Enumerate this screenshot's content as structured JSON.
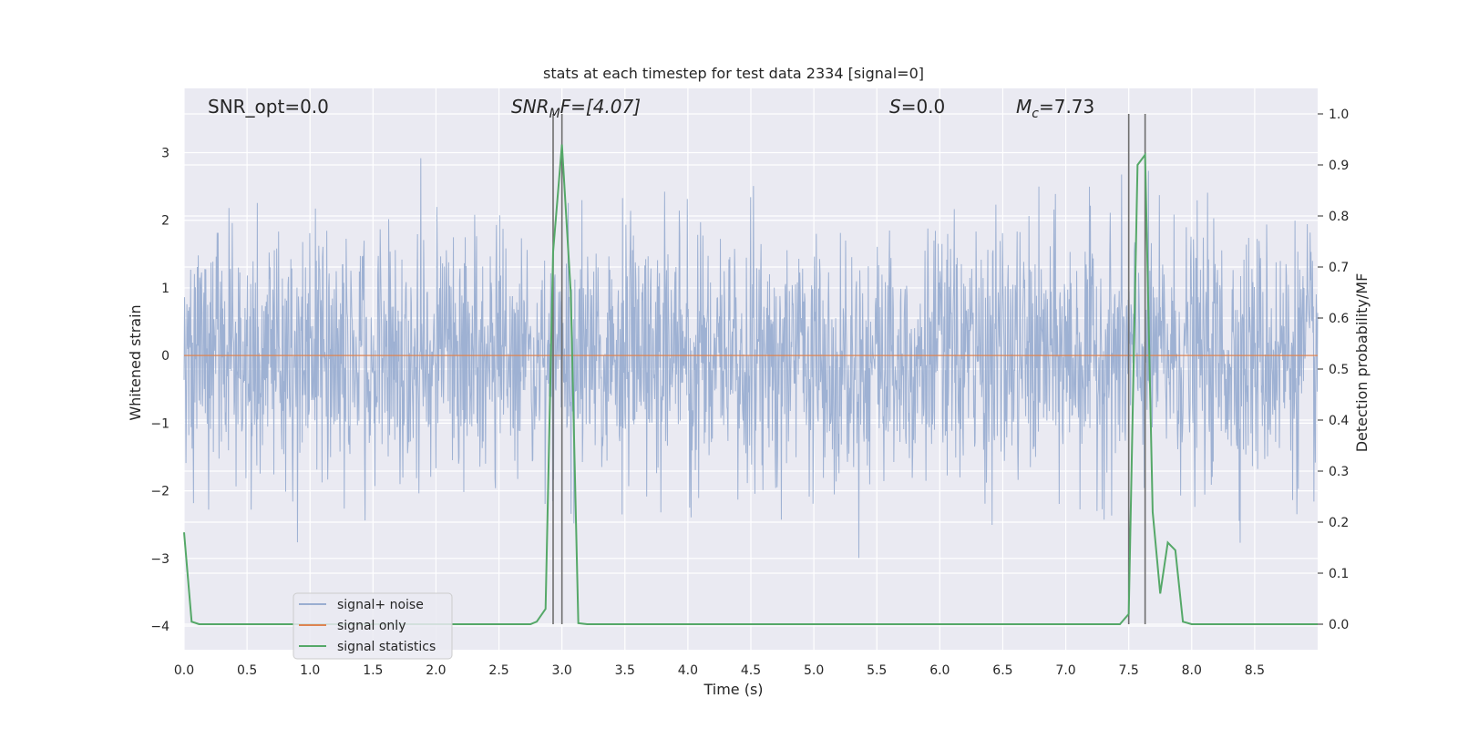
{
  "chart_data": {
    "type": "line",
    "title": "stats at each timestep for test data 2334 [signal=0]",
    "xlabel": "Time (s)",
    "ylabel_left": "Whitened strain",
    "ylabel_right": "Detection probability/MF",
    "xlim": [
      0,
      9.0
    ],
    "ylim_left": [
      -4.35,
      3.95
    ],
    "ylim_right": [
      -0.05,
      1.05
    ],
    "x_ticks": [
      "0.0",
      "0.5",
      "1.0",
      "1.5",
      "2.0",
      "2.5",
      "3.0",
      "3.5",
      "4.0",
      "4.5",
      "5.0",
      "5.5",
      "6.0",
      "6.5",
      "7.0",
      "7.5",
      "8.0",
      "8.5"
    ],
    "x_tick_values": [
      0,
      0.5,
      1,
      1.5,
      2,
      2.5,
      3,
      3.5,
      4,
      4.5,
      5,
      5.5,
      6,
      6.5,
      7,
      7.5,
      8,
      8.5
    ],
    "y_left_ticks": [
      "3",
      "2",
      "1",
      "0",
      "−1",
      "−2",
      "−3",
      "−4"
    ],
    "y_left_tick_values": [
      3,
      2,
      1,
      0,
      -1,
      -2,
      -3,
      -4
    ],
    "y_right_ticks": [
      "1.0",
      "0.9",
      "0.8",
      "0.7",
      "0.6",
      "0.5",
      "0.4",
      "0.3",
      "0.2",
      "0.1",
      "0.0"
    ],
    "y_right_tick_values": [
      1.0,
      0.9,
      0.8,
      0.7,
      0.6,
      0.5,
      0.4,
      0.3,
      0.2,
      0.1,
      0.0
    ],
    "annotations": {
      "snr_opt": "SNR_opt=0.0",
      "snr_mf_main": "SNR",
      "snr_mf_sub": "M",
      "snr_mf_rest": "F=[4.07]",
      "s_main": "S",
      "s_rest": "=0.0",
      "mc_main": "M",
      "mc_sub": "c",
      "mc_rest": "=7.73"
    },
    "vertical_markers": [
      2.93,
      3.0,
      7.5,
      7.63
    ],
    "series": [
      {
        "name": "signal+ noise",
        "color": "#9aaed1",
        "axis": "left",
        "noise_std": 0.92,
        "x_range": [
          0,
          9.0
        ]
      },
      {
        "name": "signal only",
        "color": "#dd8452",
        "axis": "left",
        "x": [
          0,
          9.0
        ],
        "y": [
          0,
          0
        ]
      },
      {
        "name": "signal statistics",
        "color": "#55a868",
        "axis": "right",
        "x": [
          0.0,
          0.06,
          0.12,
          0.2,
          0.5,
          1.0,
          1.5,
          2.0,
          2.5,
          2.75,
          2.8,
          2.87,
          2.93,
          3.0,
          3.07,
          3.13,
          3.2,
          3.5,
          4.0,
          5.0,
          6.0,
          7.0,
          7.43,
          7.5,
          7.57,
          7.63,
          7.69,
          7.75,
          7.81,
          7.87,
          7.93,
          8.0,
          8.5,
          9.0
        ],
        "y": [
          0.18,
          0.005,
          0.0,
          0.0,
          0.0,
          0.0,
          0.0,
          0.0,
          0.0,
          0.0,
          0.005,
          0.03,
          0.73,
          0.94,
          0.65,
          0.002,
          0.0,
          0.0,
          0.0,
          0.0,
          0.0,
          0.0,
          0.0,
          0.02,
          0.9,
          0.92,
          0.22,
          0.06,
          0.16,
          0.145,
          0.005,
          0.0,
          0.0,
          0.0
        ]
      }
    ],
    "legend_position": "lower-left",
    "grid": true
  }
}
